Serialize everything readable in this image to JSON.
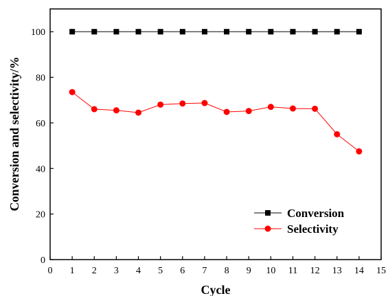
{
  "chart_data": {
    "type": "line",
    "xlabel": "Cycle",
    "ylabel": "Conversion and selectivity/%",
    "xlim": [
      0,
      15
    ],
    "ylim": [
      0,
      110
    ],
    "xticks": [
      0,
      1,
      2,
      3,
      4,
      5,
      6,
      7,
      8,
      9,
      10,
      11,
      12,
      13,
      14,
      15
    ],
    "yticks": [
      0,
      20,
      40,
      60,
      80,
      100
    ],
    "grid": false,
    "legend_position": "bottom-right",
    "x": [
      1,
      2,
      3,
      4,
      5,
      6,
      7,
      8,
      9,
      10,
      11,
      12,
      13,
      14
    ],
    "series": [
      {
        "name": "Conversion",
        "color": "#000000",
        "marker": "square",
        "values": [
          100,
          100,
          100,
          100,
          100,
          100,
          100,
          100,
          100,
          100,
          100,
          100,
          100,
          100
        ]
      },
      {
        "name": "Selectivity",
        "color": "#ff0000",
        "marker": "circle",
        "values": [
          73.5,
          66,
          65.5,
          64.5,
          68,
          68.5,
          68.7,
          64.8,
          65.2,
          67,
          66.3,
          66.2,
          55,
          47.5
        ]
      }
    ]
  }
}
